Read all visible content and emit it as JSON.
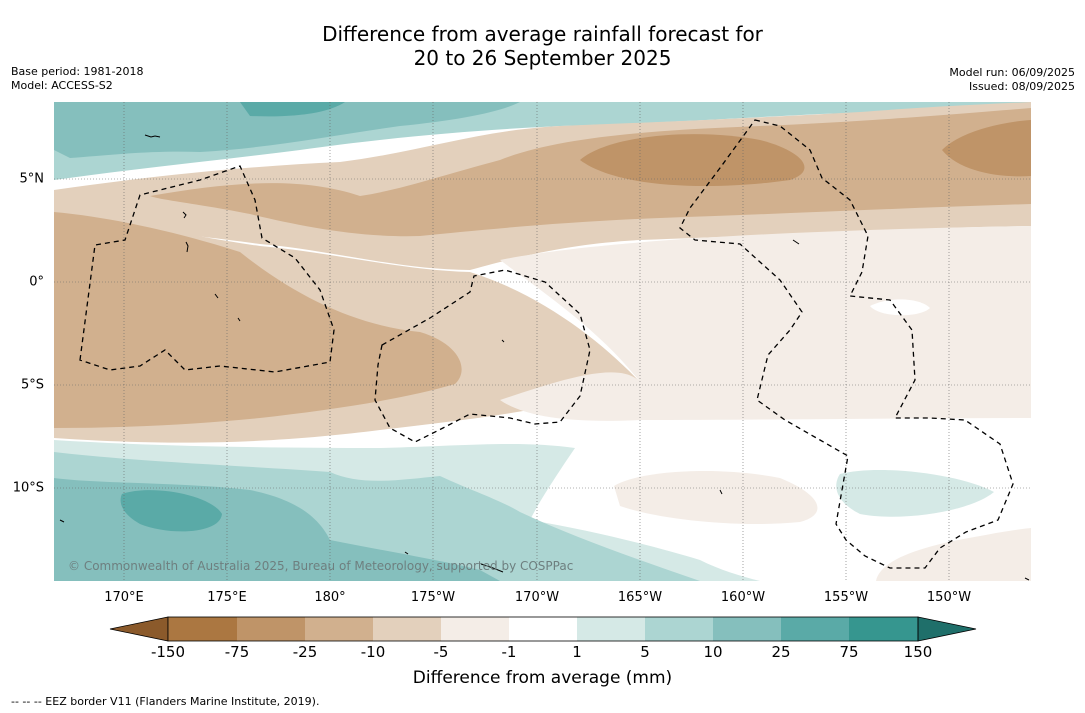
{
  "title_line1": "Difference from average rainfall forecast for",
  "title_line2": "20 to 26 September 2025",
  "base_period": "Base period: 1981-2018",
  "model": "Model: ACCESS-S2",
  "model_run": "Model run: 06/09/2025",
  "issued": "Issued: 08/09/2025",
  "longitude_labels": [
    "170°E",
    "175°E",
    "180°",
    "175°W",
    "170°W",
    "165°W",
    "160°W",
    "155°W",
    "150°W"
  ],
  "latitude_labels": [
    "5°N",
    "0°",
    "5°S",
    "10°S"
  ],
  "copyright": "© Commonwealth of Australia 2025, Bureau of Meteorology, supported by COSPPac",
  "colorbar": {
    "label": "Difference from average (mm)",
    "ticks": [
      "-150",
      "-75",
      "-25",
      "-10",
      "-5",
      "-1",
      "1",
      "5",
      "10",
      "25",
      "75",
      "150"
    ],
    "colors": [
      "#8b5a2b",
      "#ab7741",
      "#bf9468",
      "#d1b08e",
      "#e3d0bc",
      "#f4ede7",
      "#ffffff",
      "#d5e9e6",
      "#acd5d2",
      "#85bfbd",
      "#5aaaa7",
      "#36968f",
      "#1f6f6a"
    ]
  },
  "eez_note": "--  --  -- EEZ border V11 (Flanders Marine Institute, 2019)."
}
